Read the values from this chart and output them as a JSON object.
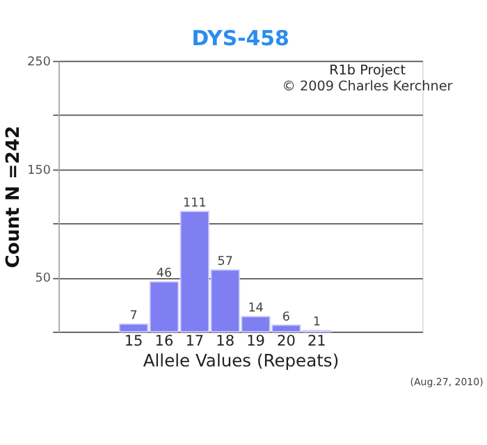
{
  "chart_data": {
    "type": "bar",
    "title": "DYS-458",
    "xlabel": "Allele Values (Repeats)",
    "ylabel": "Count N =242",
    "categories": [
      null,
      null,
      "15",
      "16",
      "17",
      "18",
      "19",
      "20",
      "21",
      null,
      null,
      null
    ],
    "values": [
      null,
      null,
      7,
      46,
      111,
      57,
      14,
      6,
      1,
      null,
      null,
      null
    ],
    "color": "#7f7ff2",
    "ylim": [
      0,
      250
    ],
    "yticks": [
      {
        "value": 0,
        "label": null
      },
      50,
      {
        "value": 100,
        "label": null
      },
      150,
      {
        "value": 200,
        "label": null
      },
      250
    ],
    "grid": "y",
    "data_labels": true,
    "annotations": [
      "R1b Project",
      "© 2009 Charles Kerchner",
      "(Aug.27, 2010)"
    ]
  }
}
